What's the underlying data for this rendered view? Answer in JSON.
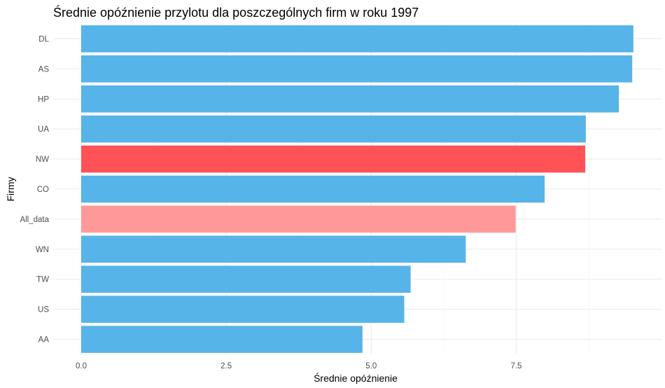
{
  "chart_data": {
    "type": "bar",
    "orientation": "horizontal",
    "title": "Średnie opóźnienie przylotu dla poszczególnych firm w roku 1997",
    "xlabel": "Średnie opóźnienie",
    "ylabel": "Firmy",
    "xlim": [
      0,
      9.5
    ],
    "x_ticks": [
      "0.0",
      "2.5",
      "5.0",
      "7.5"
    ],
    "x_tick_values": [
      0,
      2.5,
      5,
      7.5
    ],
    "grid": true,
    "categories": [
      "DL",
      "AS",
      "HP",
      "UA",
      "NW",
      "CO",
      "All_data",
      "WN",
      "TW",
      "US",
      "AA"
    ],
    "values": [
      9.52,
      9.5,
      9.27,
      8.7,
      8.69,
      7.99,
      7.49,
      6.63,
      5.68,
      5.57,
      4.85
    ],
    "colors": [
      "#56B4E9",
      "#56B4E9",
      "#56B4E9",
      "#56B4E9",
      "#FF5257",
      "#56B4E9",
      "#FF9999",
      "#56B4E9",
      "#56B4E9",
      "#56B4E9",
      "#56B4E9"
    ],
    "legend": "none"
  }
}
